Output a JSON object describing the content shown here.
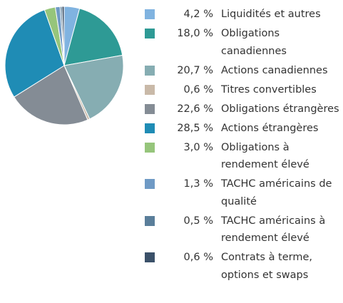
{
  "chart_data": {
    "type": "pie",
    "categories": [
      "Liquidités et autres",
      "Obligations canadiennes",
      "Actions canadiennes",
      "Titres convertibles",
      "Obligations étrangères",
      "Actions étrangères",
      "Obligations à rendement élevé",
      "TACHC américains de qualité",
      "TACHC américains à rendement élevé",
      "Contrats à terme, options et swaps"
    ],
    "values": [
      4.2,
      18.0,
      20.7,
      0.6,
      22.6,
      28.5,
      3.0,
      1.3,
      0.5,
      0.6
    ],
    "value_labels": [
      "4,2 %",
      "18,0 %",
      "20,7 %",
      "0,6 %",
      "22,6 %",
      "28,5 %",
      "3,0 %",
      "1,3 %",
      "0,5 %",
      "0,6 %"
    ],
    "colors": [
      "#80b3e0",
      "#2e9a95",
      "#86adb2",
      "#c9b9a8",
      "#848c95",
      "#1f8cb5",
      "#96c57b",
      "#6f9ac5",
      "#5a7e9a",
      "#3b5169"
    ]
  }
}
